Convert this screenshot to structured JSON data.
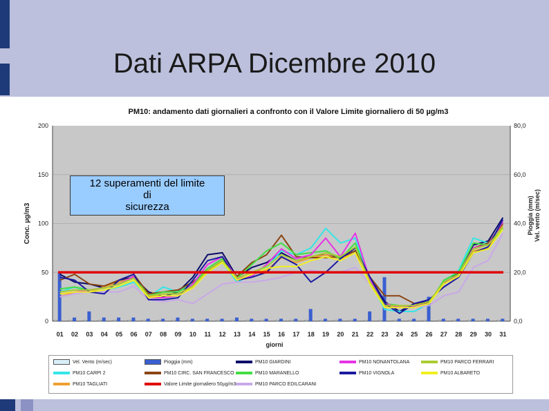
{
  "slide": {
    "title": "Dati ARPA Dicembre 2010"
  },
  "callout": {
    "lines": [
      "12 superamenti del limite",
      "di",
      "sicurezza"
    ]
  },
  "chart_data": {
    "type": "line",
    "title": "PM10: andamento  dati giornalieri a confronto con il Valore Limite giornaliero di 50 µg/m3",
    "xlabel": "giorni",
    "ylabel": "Conc. µg/m3",
    "y2label": "Pioggia (mm)\nVel. vento (m/sec)",
    "ylim": [
      0,
      200
    ],
    "y2lim": [
      0,
      80
    ],
    "yticks": [
      "0",
      "50",
      "100",
      "150",
      "200"
    ],
    "y2ticks": [
      "0,0",
      "20,0",
      "40,0",
      "60,0",
      "80,0"
    ],
    "categories": [
      "01",
      "02",
      "03",
      "04",
      "05",
      "06",
      "07",
      "08",
      "09",
      "10",
      "11",
      "12",
      "13",
      "14",
      "15",
      "16",
      "17",
      "18",
      "19",
      "20",
      "21",
      "22",
      "23",
      "24",
      "25",
      "26",
      "27",
      "28",
      "29",
      "30",
      "31"
    ],
    "limit": {
      "name": "Valore Limite giornaliero 50µg/m3",
      "value": 50,
      "color": "#e00000"
    },
    "bars": {
      "name": "Pioggia (mm)",
      "color": "#3a5fd0",
      "values": [
        20,
        1.5,
        4,
        1.5,
        1.5,
        1.5,
        1,
        1,
        1.5,
        1,
        1,
        1,
        1.5,
        1,
        1,
        1,
        1,
        5,
        1,
        1,
        1,
        4,
        18,
        1,
        1,
        10,
        1,
        1,
        1,
        1,
        1
      ]
    },
    "wind": {
      "name": "Vel. Vento (m/sec)",
      "color": "#d8eef8",
      "values": [
        0.3,
        0.3,
        0.3,
        0.3,
        0.3,
        0.3,
        0.3,
        0.3,
        0.3,
        0.3,
        0.3,
        0.3,
        0.3,
        0.3,
        0.3,
        0.3,
        0.3,
        0.3,
        0.3,
        0.3,
        0.3,
        0.3,
        0.3,
        0.3,
        0.3,
        0.3,
        0.3,
        0.3,
        0.3,
        0.3,
        0.3
      ]
    },
    "series": [
      {
        "name": "PM10 GIARDINI",
        "color": "#0a0a6a",
        "values": [
          48,
          40,
          38,
          34,
          42,
          45,
          30,
          25,
          30,
          45,
          68,
          70,
          45,
          55,
          60,
          70,
          62,
          66,
          68,
          65,
          72,
          45,
          20,
          10,
          18,
          20,
          38,
          50,
          78,
          82,
          106
        ]
      },
      {
        "name": "PM10 CARPI 2",
        "color": "#33e6e6",
        "values": [
          30,
          35,
          30,
          32,
          35,
          40,
          25,
          35,
          30,
          40,
          50,
          60,
          40,
          48,
          55,
          72,
          68,
          75,
          95,
          80,
          85,
          40,
          12,
          10,
          10,
          18,
          40,
          52,
          85,
          80,
          100
        ]
      },
      {
        "name": "PM10 TAGLIATI",
        "color": "#f0a030",
        "values": [
          25,
          30,
          30,
          35,
          40,
          45,
          25,
          28,
          28,
          35,
          50,
          62,
          42,
          48,
          52,
          65,
          60,
          65,
          68,
          64,
          70,
          38,
          15,
          15,
          15,
          18,
          40,
          48,
          72,
          75,
          98
        ]
      },
      {
        "name": "PM10 CIRC. SAN FRANCESCO",
        "color": "#8b4513",
        "values": [
          42,
          48,
          38,
          36,
          42,
          48,
          28,
          30,
          32,
          40,
          52,
          62,
          46,
          60,
          68,
          88,
          66,
          65,
          65,
          66,
          72,
          45,
          26,
          26,
          18,
          18,
          40,
          48,
          75,
          80,
          100
        ]
      },
      {
        "name": "PM10 MARANELLO",
        "color": "#44dd44",
        "values": [
          33,
          35,
          32,
          34,
          38,
          46,
          26,
          30,
          30,
          38,
          54,
          64,
          44,
          58,
          72,
          80,
          68,
          70,
          72,
          64,
          80,
          40,
          18,
          16,
          15,
          18,
          42,
          50,
          80,
          78,
          95
        ]
      },
      {
        "name": "PM10 PARCO EDILCARANI",
        "color": "#c8a8e8",
        "values": [
          25,
          28,
          30,
          30,
          30,
          36,
          22,
          20,
          22,
          18,
          28,
          38,
          40,
          40,
          42,
          45,
          50,
          52,
          50,
          50,
          55,
          38,
          14,
          14,
          14,
          16,
          26,
          30,
          55,
          62,
          90
        ]
      },
      {
        "name": "PM10 NONANTOLANA",
        "color": "#e633e6",
        "values": [
          28,
          30,
          32,
          34,
          38,
          46,
          24,
          24,
          26,
          38,
          58,
          66,
          44,
          46,
          58,
          74,
          64,
          68,
          85,
          66,
          90,
          42,
          18,
          14,
          15,
          18,
          38,
          48,
          75,
          78,
          102
        ]
      },
      {
        "name": "PM10 VIGNOLA",
        "color": "#1a1aa0",
        "values": [
          45,
          42,
          30,
          28,
          42,
          48,
          22,
          22,
          24,
          42,
          62,
          66,
          42,
          45,
          50,
          66,
          58,
          40,
          50,
          64,
          75,
          45,
          18,
          8,
          18,
          22,
          35,
          45,
          70,
          76,
          104
        ]
      },
      {
        "name": "PM10 PARCO FERRARI",
        "color": "#aacc33",
        "values": [
          30,
          32,
          32,
          34,
          38,
          44,
          26,
          28,
          28,
          36,
          52,
          62,
          44,
          50,
          56,
          68,
          62,
          66,
          70,
          66,
          76,
          40,
          16,
          16,
          16,
          20,
          40,
          48,
          74,
          78,
          96
        ]
      },
      {
        "name": "PM10 ALBARETO",
        "color": "#f0f020",
        "values": [
          28,
          30,
          30,
          32,
          36,
          42,
          24,
          26,
          26,
          34,
          50,
          60,
          42,
          48,
          54,
          56,
          56,
          62,
          66,
          62,
          70,
          38,
          14,
          14,
          14,
          18,
          38,
          46,
          70,
          74,
          94
        ]
      }
    ]
  }
}
